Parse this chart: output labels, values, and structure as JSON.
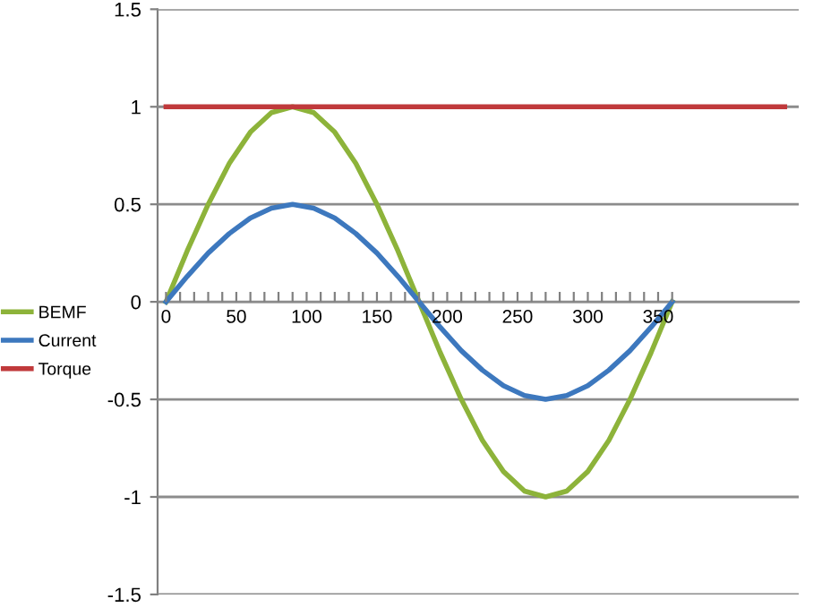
{
  "chart_data": {
    "type": "line",
    "xlim": [
      -6,
      450
    ],
    "ylim": [
      -1.5,
      1.5
    ],
    "xticks": [
      0,
      {
        "value": 10,
        "label": null
      },
      {
        "value": 20,
        "label": null
      },
      {
        "value": 30,
        "label": null
      },
      {
        "value": 40,
        "label": null
      },
      50,
      {
        "value": 60,
        "label": null
      },
      {
        "value": 70,
        "label": null
      },
      {
        "value": 80,
        "label": null
      },
      {
        "value": 90,
        "label": null
      },
      100,
      {
        "value": 110,
        "label": null
      },
      {
        "value": 120,
        "label": null
      },
      {
        "value": 130,
        "label": null
      },
      {
        "value": 140,
        "label": null
      },
      150,
      {
        "value": 160,
        "label": null
      },
      {
        "value": 170,
        "label": null
      },
      {
        "value": 180,
        "label": null
      },
      {
        "value": 190,
        "label": null
      },
      200,
      {
        "value": 210,
        "label": null
      },
      {
        "value": 220,
        "label": null
      },
      {
        "value": 230,
        "label": null
      },
      {
        "value": 240,
        "label": null
      },
      250,
      {
        "value": 260,
        "label": null
      },
      {
        "value": 270,
        "label": null
      },
      {
        "value": 280,
        "label": null
      },
      {
        "value": 290,
        "label": null
      },
      300,
      {
        "value": 310,
        "label": null
      },
      {
        "value": 320,
        "label": null
      },
      {
        "value": 330,
        "label": null
      },
      {
        "value": 340,
        "label": null
      },
      350,
      {
        "value": 360,
        "label": null
      }
    ],
    "yticks": [
      -1.5,
      -1,
      -0.5,
      0,
      0.5,
      1,
      1.5
    ],
    "grid": "y",
    "legend": "left",
    "marker": "none",
    "line_style": "solid",
    "x": [
      0,
      15,
      30,
      45,
      60,
      75,
      90,
      105,
      120,
      135,
      150,
      165,
      180,
      195,
      210,
      225,
      240,
      255,
      270,
      285,
      300,
      315,
      330,
      345,
      360
    ],
    "series": [
      {
        "name": "BEMF",
        "color": "#8db33a",
        "values": [
          0,
          0.26,
          0.5,
          0.71,
          0.87,
          0.97,
          1,
          0.97,
          0.87,
          0.71,
          0.5,
          0.26,
          0,
          -0.26,
          -0.5,
          -0.71,
          -0.87,
          -0.97,
          -1,
          -0.97,
          -0.87,
          -0.71,
          -0.5,
          -0.26,
          0
        ]
      },
      {
        "name": "Current",
        "color": "#3d78be",
        "values": [
          0,
          0.13,
          0.25,
          0.35,
          0.43,
          0.48,
          0.5,
          0.48,
          0.43,
          0.35,
          0.25,
          0.13,
          0,
          -0.13,
          -0.25,
          -0.35,
          -0.43,
          -0.48,
          -0.5,
          -0.48,
          -0.43,
          -0.35,
          -0.25,
          -0.13,
          0
        ]
      },
      {
        "name": "Torque",
        "color": "#c0393b",
        "x": [
          0,
          440
        ],
        "values": [
          1,
          1
        ]
      }
    ]
  }
}
